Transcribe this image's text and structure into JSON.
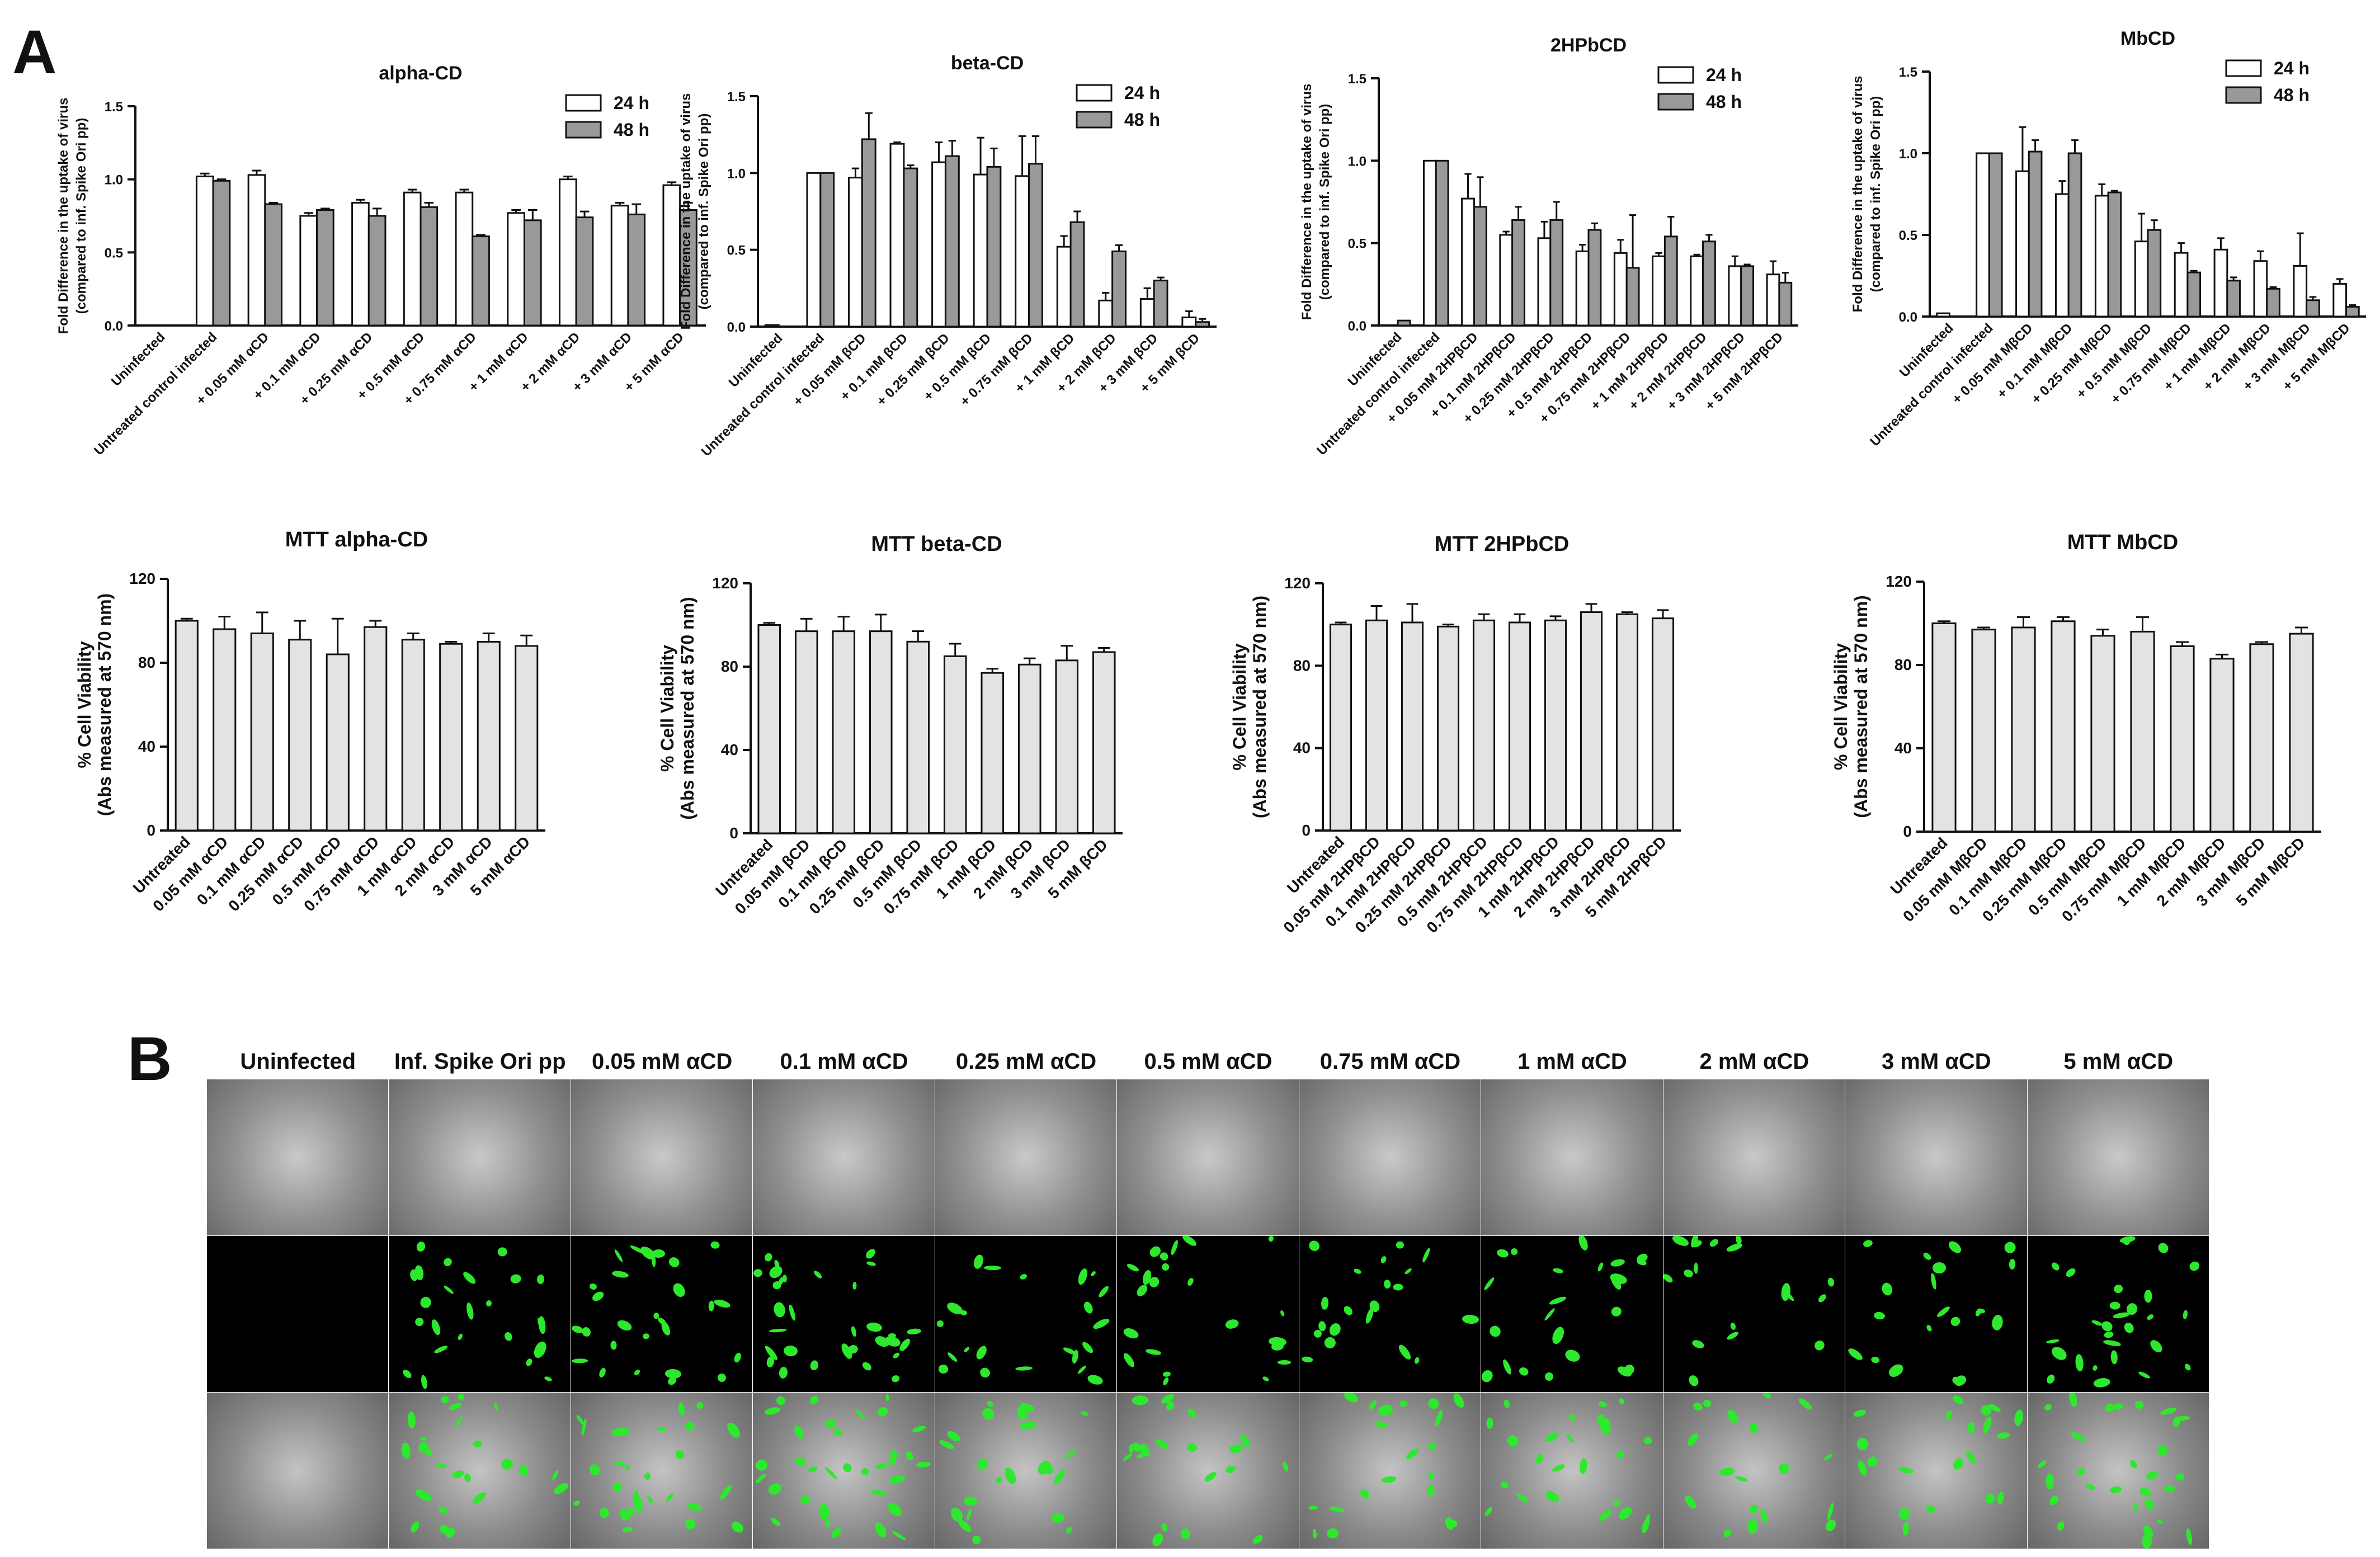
{
  "panel_a_label": "A",
  "panel_b_label": "B",
  "colors": {
    "bar_24h": "#ffffff",
    "bar_48h": "#999999",
    "bar_mtt": "#e3e3e3",
    "gfp": "#2ee82e",
    "axis": "#111111"
  },
  "chart_data": [
    {
      "type": "bar",
      "title": "alpha-CD",
      "ylabel": "Fold Difference in the uptake of virus (compared to inf. Spike Ori pp)",
      "ylim": [
        0,
        1.5
      ],
      "yticks": [
        "0.0",
        "0.5",
        "1.0",
        "1.5"
      ],
      "legend": "top-right",
      "categories": [
        "Uninfected",
        "Untreated control infected",
        "+ 0.05 mM αCD",
        "+ 0.1 mM αCD",
        "+ 0.25 mM αCD",
        "+ 0.5 mM αCD",
        "+ 0.75 mM αCD",
        "+ 1 mM αCD",
        "+ 2 mM αCD",
        "+ 3 mM αCD",
        "+ 5 mM αCD"
      ],
      "series": [
        {
          "name": "24 h",
          "values": [
            0.0,
            1.02,
            1.03,
            0.75,
            0.84,
            0.91,
            0.91,
            0.77,
            1.0,
            0.82,
            0.96
          ],
          "errors": [
            0,
            0.02,
            0.03,
            0.02,
            0.02,
            0.02,
            0.02,
            0.02,
            0.02,
            0.02,
            0.02
          ]
        },
        {
          "name": "48 h",
          "values": [
            0.0,
            0.99,
            0.83,
            0.79,
            0.75,
            0.81,
            0.61,
            0.72,
            0.74,
            0.76,
            0.79
          ],
          "errors": [
            0,
            0.01,
            0.01,
            0.01,
            0.05,
            0.03,
            0.01,
            0.07,
            0.04,
            0.07,
            0.05
          ]
        }
      ]
    },
    {
      "type": "bar",
      "title": "beta-CD",
      "ylabel": "Fold Difference in the uptake of virus (compared to inf. Spike Ori pp)",
      "ylim": [
        0,
        1.5
      ],
      "yticks": [
        "0.0",
        "0.5",
        "1.0",
        "1.5"
      ],
      "legend": "top-right",
      "categories": [
        "Uninfected",
        "Untreated control infected",
        "+ 0.05 mM βCD",
        "+ 0.1 mM βCD",
        "+ 0.25 mM βCD",
        "+ 0.5 mM βCD",
        "+ 0.75 mM βCD",
        "+ 1 mM βCD",
        "+ 2 mM βCD",
        "+ 3 mM βCD",
        "+ 5 mM βCD"
      ],
      "series": [
        {
          "name": "24 h",
          "values": [
            0.01,
            1.0,
            0.97,
            1.19,
            1.07,
            0.99,
            0.98,
            0.52,
            0.17,
            0.18,
            0.06
          ],
          "errors": [
            0,
            0,
            0.06,
            0.01,
            0.13,
            0.24,
            0.26,
            0.07,
            0.05,
            0.07,
            0.04
          ]
        },
        {
          "name": "48 h",
          "values": [
            0.0,
            1.0,
            1.22,
            1.03,
            1.11,
            1.04,
            1.06,
            0.68,
            0.49,
            0.3,
            0.03
          ],
          "errors": [
            0,
            0,
            0.17,
            0.02,
            0.1,
            0.12,
            0.18,
            0.07,
            0.04,
            0.02,
            0.02
          ]
        }
      ]
    },
    {
      "type": "bar",
      "title": "2HPbCD",
      "ylabel": "Fold Difference in the uptake of virus (compared to inf. Spike Ori pp)",
      "ylim": [
        0,
        1.5
      ],
      "yticks": [
        "0.0",
        "0.5",
        "1.0",
        "1.5"
      ],
      "legend": "top-right",
      "categories": [
        "Uninfected",
        "Untreated control infected",
        "+ 0.05 mM 2HPβCD",
        "+ 0.1 mM 2HPβCD",
        "+ 0.25 mM 2HPβCD",
        "+ 0.5 mM 2HPβCD",
        "+ 0.75 mM 2HPβCD",
        "+ 1 mM 2HPβCD",
        "+ 2 mM 2HPβCD",
        "+ 3 mM 2HPβCD",
        "+ 5 mM 2HPβCD"
      ],
      "series": [
        {
          "name": "24 h",
          "values": [
            0.0,
            1.0,
            0.77,
            0.55,
            0.53,
            0.45,
            0.44,
            0.42,
            0.42,
            0.36,
            0.31
          ],
          "errors": [
            0,
            0,
            0.15,
            0.02,
            0.1,
            0.04,
            0.08,
            0.02,
            0.01,
            0.06,
            0.08
          ]
        },
        {
          "name": "48 h",
          "values": [
            0.03,
            1.0,
            0.72,
            0.64,
            0.64,
            0.58,
            0.35,
            0.54,
            0.51,
            0.36,
            0.26
          ],
          "errors": [
            0,
            0,
            0.18,
            0.08,
            0.11,
            0.04,
            0.32,
            0.12,
            0.04,
            0.01,
            0.06
          ]
        }
      ]
    },
    {
      "type": "bar",
      "title": "MbCD",
      "ylabel": "Fold Difference in the uptake of virus (compared to inf. Spike Ori pp)",
      "ylim": [
        0,
        1.5
      ],
      "yticks": [
        "0.0",
        "0.5",
        "1.0",
        "1.5"
      ],
      "legend": "top-right",
      "categories": [
        "Uninfected",
        "Untreated control infected",
        "+ 0.05 mM MβCD",
        "+ 0.1 mM MβCD",
        "+ 0.25 mM MβCD",
        "+ 0.5 mM MβCD",
        "+ 0.75 mM MβCD",
        "+ 1 mM MβCD",
        "+ 2 mM MβCD",
        "+ 3 mM MβCD",
        "+ 5 mM MβCD"
      ],
      "series": [
        {
          "name": "24 h",
          "values": [
            0.02,
            1.0,
            0.89,
            0.75,
            0.74,
            0.46,
            0.39,
            0.41,
            0.34,
            0.31,
            0.2
          ],
          "errors": [
            0,
            0,
            0.27,
            0.08,
            0.07,
            0.17,
            0.06,
            0.07,
            0.06,
            0.2,
            0.03
          ]
        },
        {
          "name": "48 h",
          "values": [
            0.0,
            1.0,
            1.01,
            1.0,
            0.76,
            0.53,
            0.27,
            0.22,
            0.17,
            0.1,
            0.06
          ],
          "errors": [
            0,
            0,
            0.07,
            0.08,
            0.01,
            0.06,
            0.01,
            0.02,
            0.01,
            0.02,
            0.01
          ]
        }
      ]
    },
    {
      "type": "bar",
      "title": "MTT alpha-CD",
      "ylabel": "% Cell Viability (Abs measured at 570 nm)",
      "ylim": [
        0,
        120
      ],
      "yticks": [
        "0",
        "40",
        "80",
        "120"
      ],
      "categories": [
        "Untreated",
        "0.05 mM αCD",
        "0.1 mM αCD",
        "0.25 mM αCD",
        "0.5 mM αCD",
        "0.75 mM αCD",
        "1 mM αCD",
        "2 mM αCD",
        "3 mM αCD",
        "5 mM αCD"
      ],
      "series": [
        {
          "values": [
            100,
            96,
            94,
            91,
            84,
            97,
            91,
            89,
            90,
            88
          ],
          "errors": [
            1,
            6,
            10,
            9,
            17,
            3,
            3,
            1,
            4,
            5
          ]
        }
      ]
    },
    {
      "type": "bar",
      "title": "MTT beta-CD",
      "ylabel": "% Cell Viability (Abs measured at 570 nm)",
      "ylim": [
        0,
        120
      ],
      "yticks": [
        "0",
        "40",
        "80",
        "120"
      ],
      "categories": [
        "Untreated",
        "0.05 mM βCD",
        "0.1 mM βCD",
        "0.25 mM βCD",
        "0.5 mM βCD",
        "0.75 mM βCD",
        "1 mM βCD",
        "2 mM βCD",
        "3 mM βCD",
        "5 mM βCD"
      ],
      "series": [
        {
          "values": [
            100,
            97,
            97,
            97,
            92,
            85,
            77,
            81,
            83,
            87
          ],
          "errors": [
            1,
            6,
            7,
            8,
            5,
            6,
            2,
            3,
            7,
            2
          ]
        }
      ]
    },
    {
      "type": "bar",
      "title": "MTT 2HPbCD",
      "ylabel": "% Cell Viability (Abs measured at 570 nm)",
      "ylim": [
        0,
        120
      ],
      "yticks": [
        "0",
        "40",
        "80",
        "120"
      ],
      "categories": [
        "Untreated",
        "0.05 mM 2HPβCD",
        "0.1 mM 2HPβCD",
        "0.25 mM 2HPβCD",
        "0.5 mM 2HPβCD",
        "0.75 mM 2HPβCD",
        "1 mM 2HPβCD",
        "2 mM 2HPβCD",
        "3 mM 2HPβCD",
        "5 mM 2HPβCD"
      ],
      "series": [
        {
          "values": [
            100,
            102,
            101,
            99,
            102,
            101,
            102,
            106,
            105,
            103
          ],
          "errors": [
            1,
            7,
            9,
            1,
            3,
            4,
            2,
            4,
            1,
            4
          ]
        }
      ]
    },
    {
      "type": "bar",
      "title": "MTT MbCD",
      "ylabel": "% Cell Viability (Abs measured at 570 nm)",
      "ylim": [
        0,
        120
      ],
      "yticks": [
        "0",
        "40",
        "80",
        "120"
      ],
      "categories": [
        "Untreated",
        "0.05 mM MβCD",
        "0.1 mM MβCD",
        "0.25 mM MβCD",
        "0.5 mM MβCD",
        "0.75 mM MβCD",
        "1 mM MβCD",
        "2 mM MβCD",
        "3 mM MβCD",
        "5 mM MβCD"
      ],
      "series": [
        {
          "values": [
            100,
            97,
            98,
            101,
            94,
            96,
            89,
            83,
            90,
            95
          ],
          "errors": [
            1,
            1,
            5,
            2,
            3,
            7,
            2,
            2,
            1,
            3
          ]
        }
      ]
    }
  ],
  "panel_b": {
    "columns": [
      "Uninfected",
      "Inf. Spike Ori pp",
      "0.05 mM αCD",
      "0.1 mM αCD",
      "0.25 mM αCD",
      "0.5 mM αCD",
      "0.75 mM αCD",
      "1 mM αCD",
      "2 mM αCD",
      "3 mM αCD",
      "5 mM αCD"
    ],
    "gfp_level": [
      0,
      0.6,
      0.7,
      0.8,
      0.55,
      0.55,
      0.5,
      0.6,
      0.45,
      0.5,
      0.7
    ]
  }
}
